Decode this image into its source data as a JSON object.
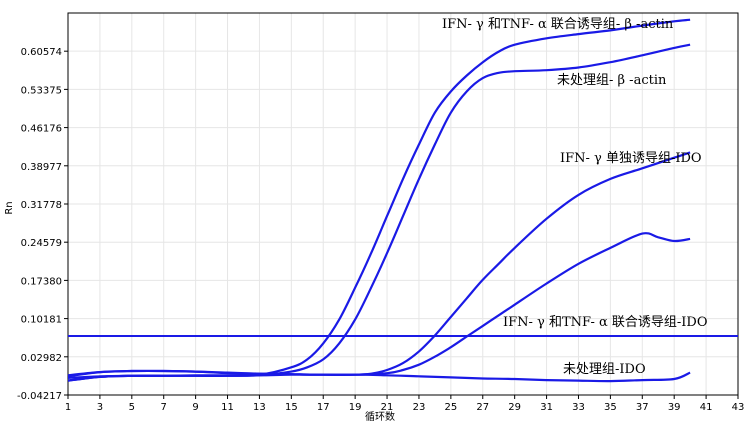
{
  "chart_data": {
    "type": "line",
    "xlabel": "循环数",
    "ylabel": "Rn",
    "xlim": [
      1,
      43
    ],
    "ylim": [
      -0.04217,
      0.6777
    ],
    "x_ticks": [
      1,
      3,
      5,
      7,
      9,
      11,
      13,
      15,
      17,
      19,
      21,
      23,
      25,
      27,
      29,
      31,
      33,
      35,
      37,
      39,
      41,
      43
    ],
    "y_ticks": [
      -0.04217,
      0.02982,
      0.10181,
      0.1738,
      0.24579,
      0.31778,
      0.38977,
      0.46176,
      0.53375,
      0.60574
    ],
    "y_tick_labels": [
      "-0.04217",
      "0.02982",
      "0.10181",
      "0.17380",
      "0.24579",
      "0.31778",
      "0.38977",
      "0.46176",
      "0.53375",
      "0.60574"
    ],
    "grid": true,
    "line_color": "#1a1ae6",
    "threshold": 0.069,
    "series": [
      {
        "x": [
          1,
          3,
          5,
          7,
          9,
          11,
          13,
          15,
          16,
          17,
          18,
          19,
          20,
          21,
          22,
          23,
          24,
          25,
          26,
          27,
          28,
          29,
          31,
          33,
          35,
          37,
          39,
          40
        ],
        "y": [
          -0.015,
          -0.008,
          -0.006,
          -0.006,
          -0.006,
          -0.006,
          -0.004,
          0.01,
          0.025,
          0.055,
          0.1,
          0.16,
          0.225,
          0.295,
          0.365,
          0.43,
          0.49,
          0.53,
          0.56,
          0.585,
          0.605,
          0.618,
          0.63,
          0.638,
          0.645,
          0.654,
          0.662,
          0.665
        ]
      },
      {
        "x": [
          1,
          3,
          5,
          7,
          9,
          11,
          13,
          15,
          16,
          17,
          18,
          19,
          20,
          21,
          22,
          23,
          24,
          25,
          26,
          27,
          28,
          29,
          31,
          33,
          35,
          37,
          39,
          40
        ],
        "y": [
          -0.015,
          -0.008,
          -0.006,
          -0.006,
          -0.006,
          -0.006,
          -0.005,
          0.002,
          0.01,
          0.025,
          0.055,
          0.1,
          0.16,
          0.225,
          0.295,
          0.365,
          0.43,
          0.49,
          0.53,
          0.555,
          0.565,
          0.568,
          0.57,
          0.575,
          0.585,
          0.598,
          0.612,
          0.618
        ]
      },
      {
        "x": [
          1,
          3,
          5,
          7,
          9,
          11,
          13,
          15,
          17,
          19,
          20,
          21,
          22,
          23,
          24,
          25,
          26,
          27,
          28,
          29,
          31,
          33,
          35,
          37,
          39,
          40
        ],
        "y": [
          -0.005,
          0.001,
          0.003,
          0.003,
          0.002,
          -0.001,
          -0.002,
          -0.003,
          -0.004,
          -0.004,
          -0.002,
          0.005,
          0.018,
          0.04,
          0.07,
          0.105,
          0.14,
          0.175,
          0.205,
          0.235,
          0.29,
          0.335,
          0.365,
          0.385,
          0.405,
          0.415
        ]
      },
      {
        "x": [
          1,
          3,
          5,
          7,
          9,
          11,
          13,
          15,
          17,
          19,
          21,
          22,
          23,
          24,
          25,
          26,
          27,
          28,
          29,
          31,
          33,
          35,
          37,
          38,
          39,
          40
        ],
        "y": [
          -0.007,
          0.001,
          0.003,
          0.003,
          0.002,
          0.0,
          -0.002,
          -0.003,
          -0.004,
          -0.004,
          -0.001,
          0.005,
          0.015,
          0.03,
          0.048,
          0.068,
          0.088,
          0.108,
          0.128,
          0.168,
          0.205,
          0.235,
          0.262,
          0.255,
          0.248,
          0.252
        ]
      },
      {
        "x": [
          1,
          3,
          5,
          7,
          9,
          11,
          13,
          15,
          17,
          19,
          21,
          23,
          25,
          27,
          29,
          31,
          33,
          35,
          37,
          39,
          40
        ],
        "y": [
          -0.01,
          -0.007,
          -0.006,
          -0.006,
          -0.005,
          -0.005,
          -0.005,
          -0.004,
          -0.004,
          -0.004,
          -0.005,
          -0.007,
          -0.009,
          -0.011,
          -0.012,
          -0.014,
          -0.015,
          -0.016,
          -0.014,
          -0.012,
          0.0
        ]
      }
    ],
    "annotations": [
      "IFN- γ 和TNF- α 联合诱导组- β -actin",
      "未处理组- β -actin",
      "IFN- γ 单独诱导组-IDO",
      "IFN- γ 和TNF- α 联合诱导组-IDO",
      "未处理组-IDO"
    ]
  }
}
